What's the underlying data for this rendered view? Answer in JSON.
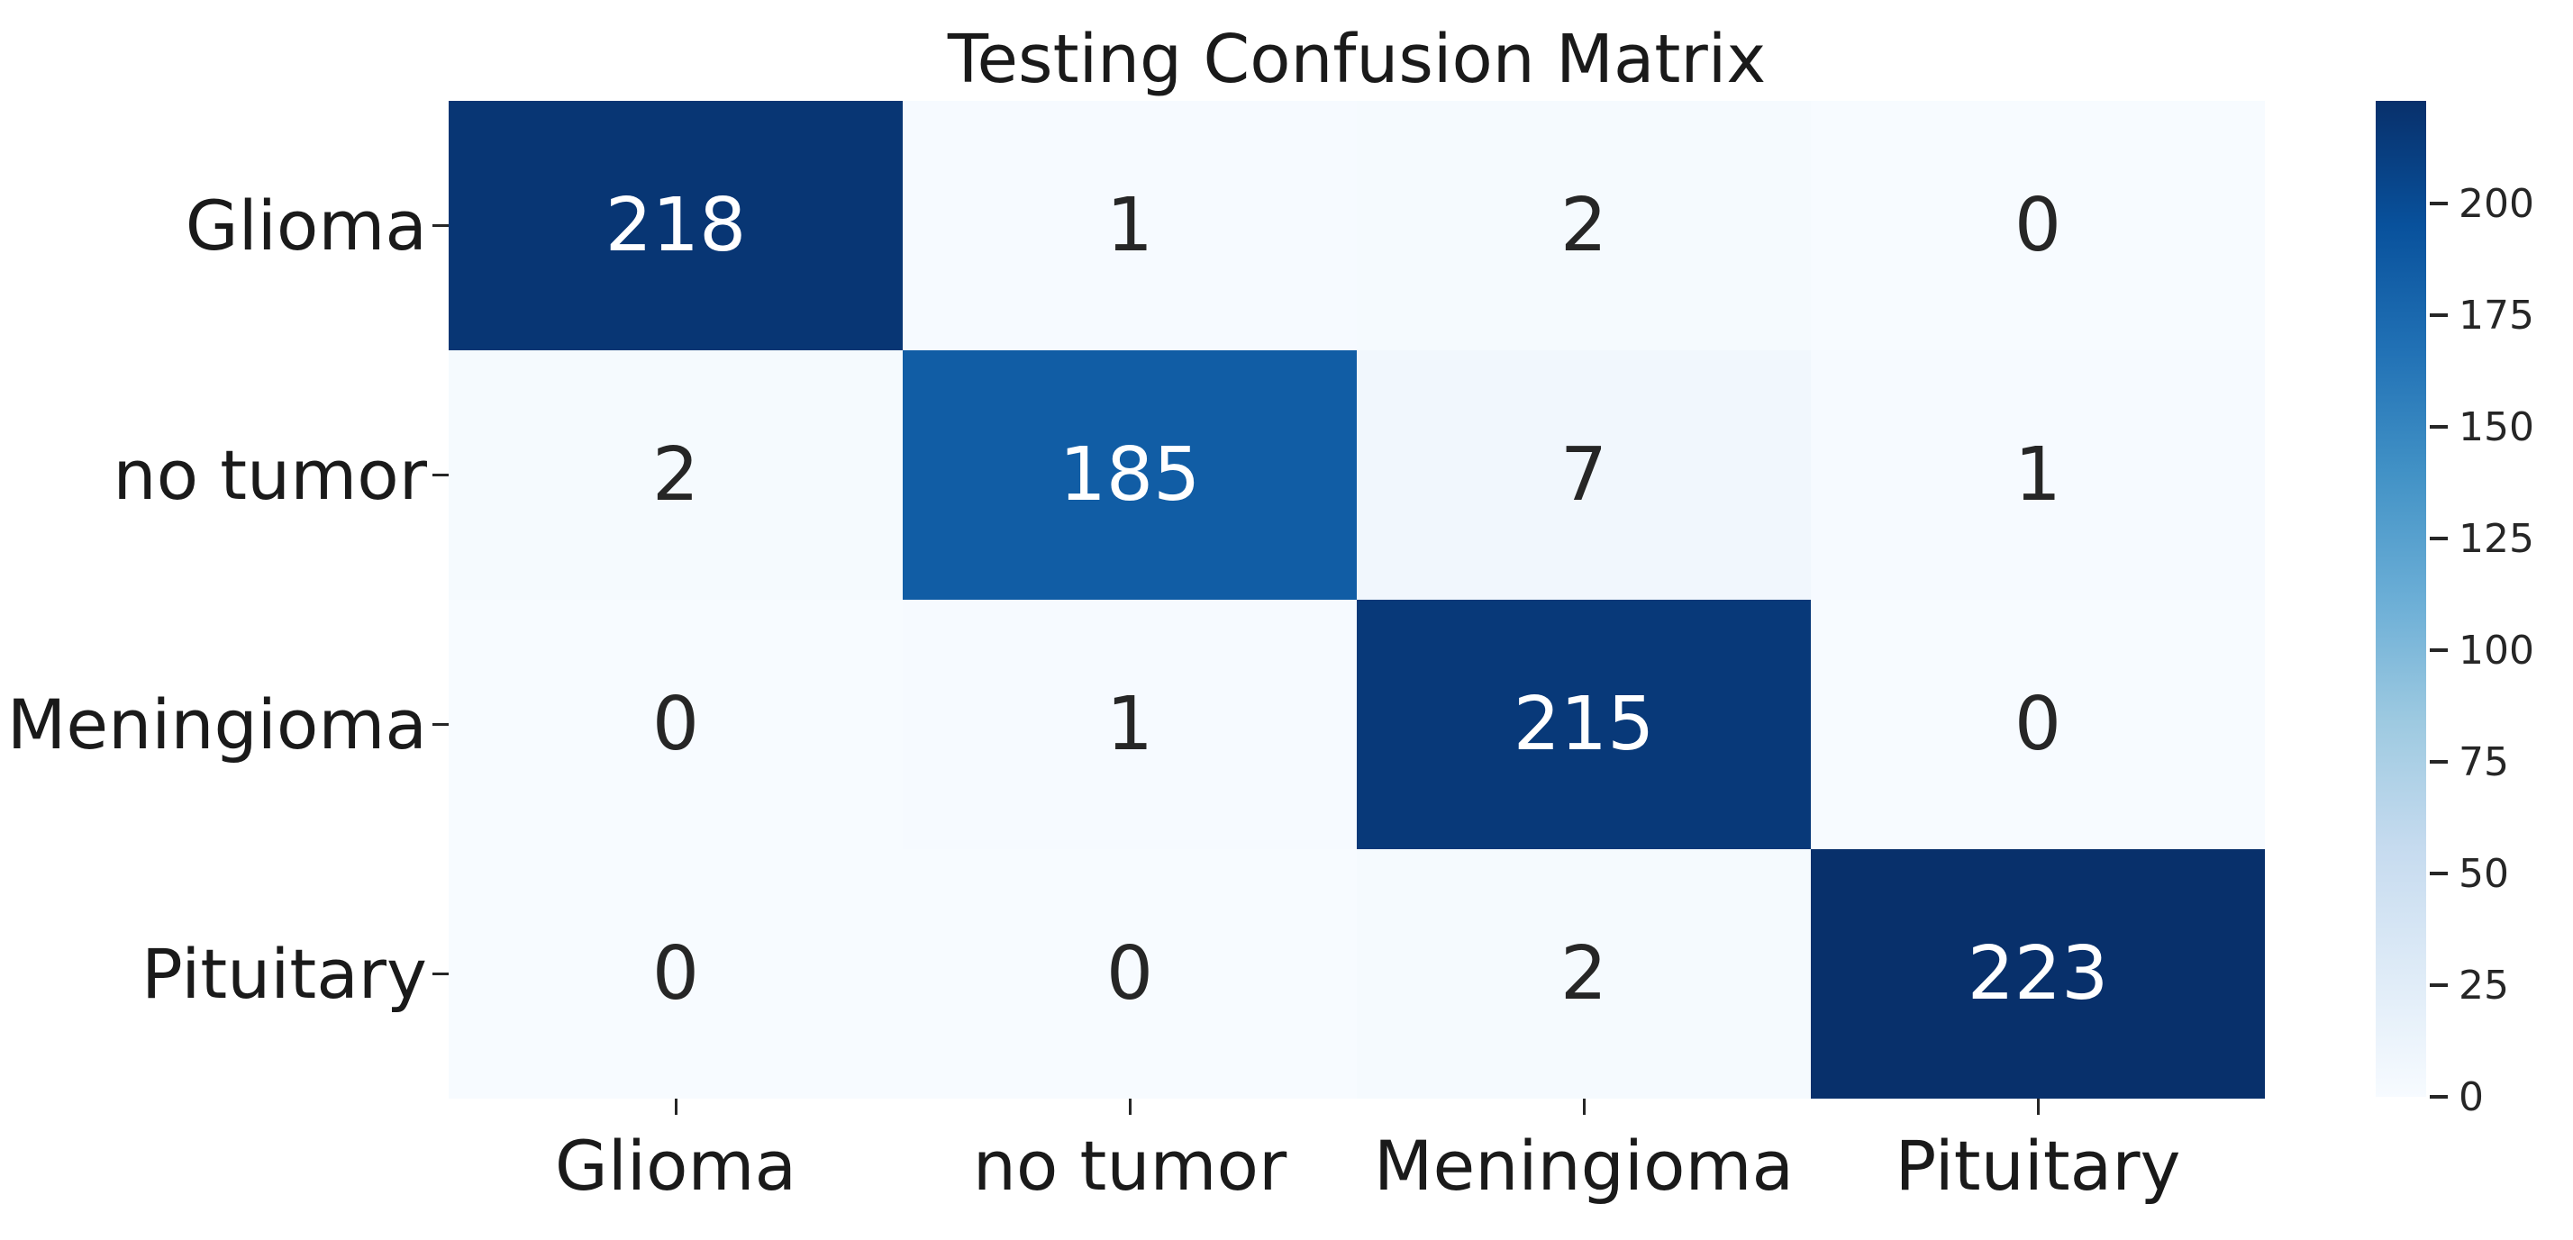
{
  "chart_data": {
    "type": "heatmap",
    "title": "Testing Confusion Matrix",
    "x_categories": [
      "Glioma",
      "no tumor",
      "Meningioma",
      "Pituitary"
    ],
    "y_categories": [
      "Glioma",
      "no tumor",
      "Meningioma",
      "Pituitary"
    ],
    "matrix": [
      [
        218,
        1,
        2,
        0
      ],
      [
        2,
        185,
        7,
        1
      ],
      [
        0,
        1,
        215,
        0
      ],
      [
        0,
        0,
        2,
        223
      ]
    ],
    "vmin": 0,
    "vmax": 223,
    "colormap": "Blues",
    "colorbar_ticks": [
      0,
      25,
      50,
      75,
      100,
      125,
      150,
      175,
      200
    ],
    "colorbar_position": "right",
    "grid": false,
    "colors": {
      "max_cell": "#08306b",
      "min_cell": "#f7fbff",
      "light_text": "#ffffff",
      "dark_text": "#262626",
      "axis_text": "#1a1a1a"
    }
  }
}
